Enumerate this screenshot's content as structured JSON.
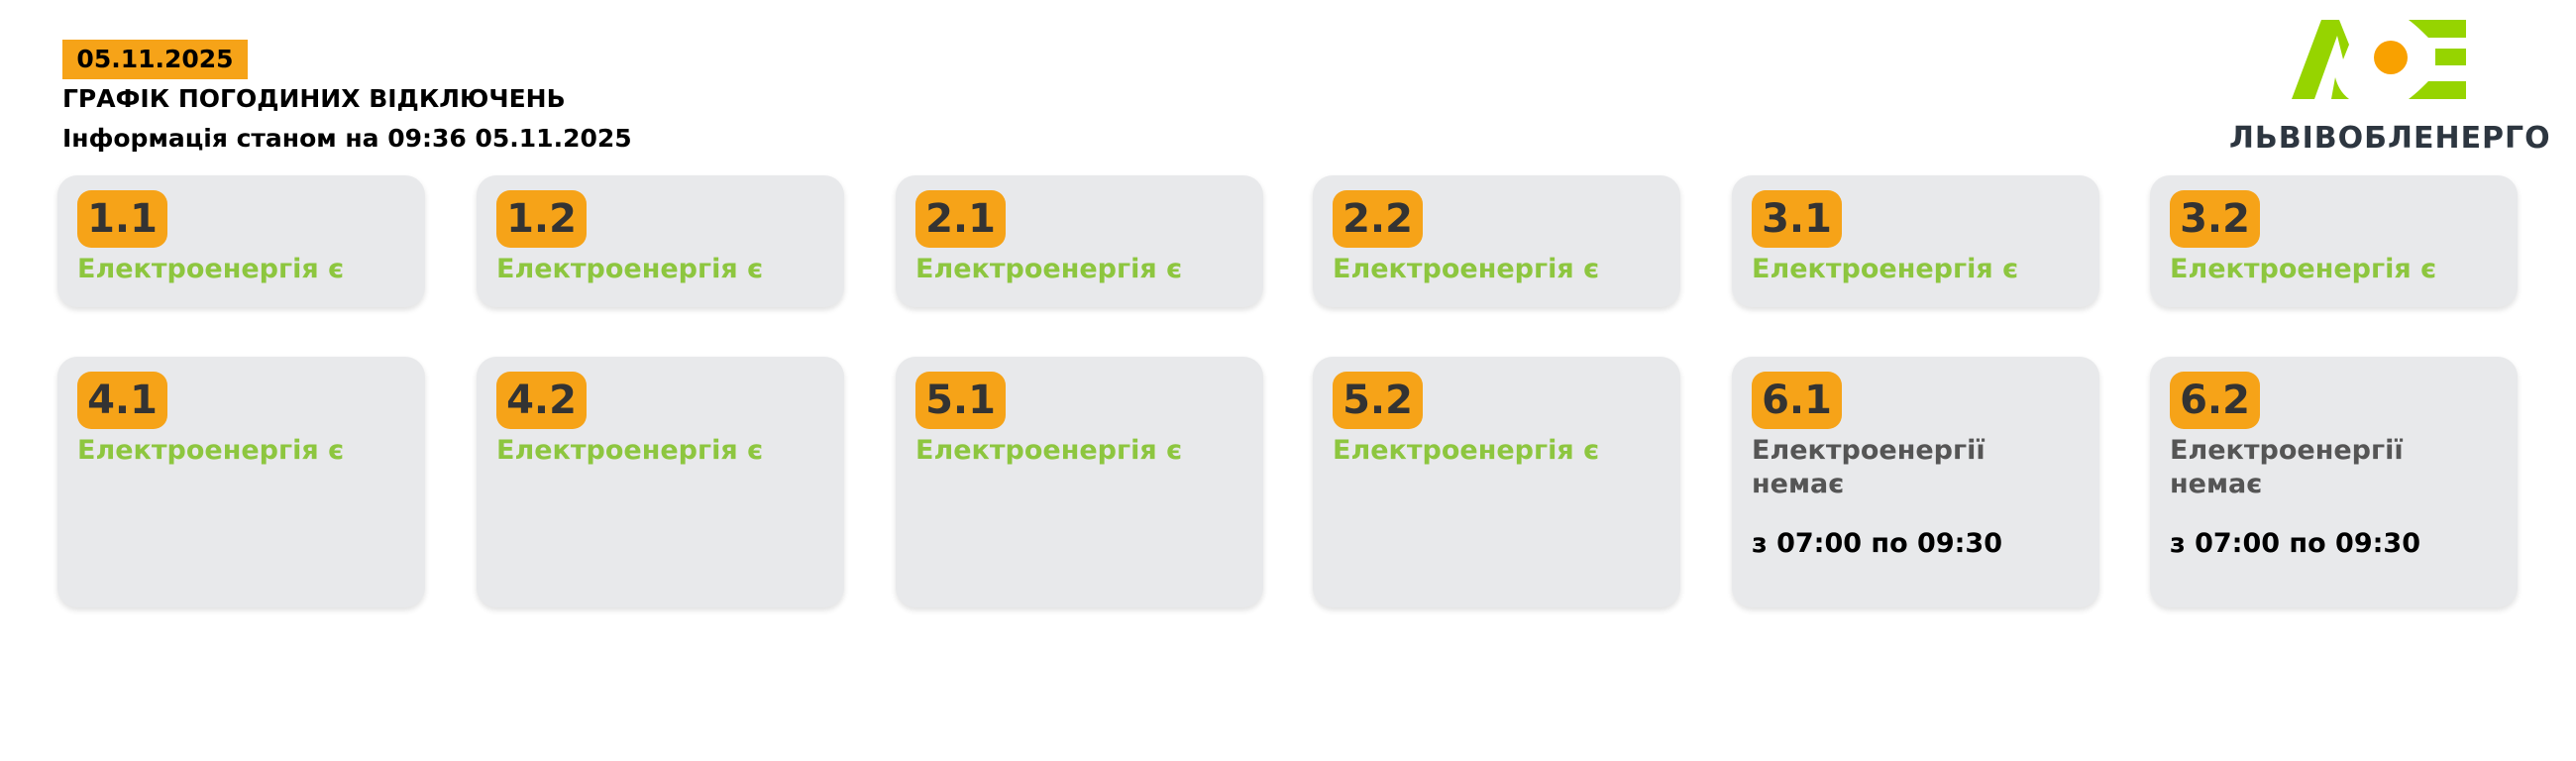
{
  "header": {
    "date": "05.11.2025",
    "title": "ГРАФІК ПОГОДИНИХ ВІДКЛЮЧЕНЬ",
    "info": "Інформація станом на 09:36 05.11.2025"
  },
  "brand": {
    "logo_text": "ЛОЕ",
    "name": "ЛЬВІВОБЛЕНЕРГО",
    "colors": {
      "green": "#96d400",
      "orange": "#f9a100"
    }
  },
  "colors": {
    "accent": "#f6a318",
    "power_on": "#8dc63f",
    "power_off": "#555555",
    "card_bg": "#e8e9eb"
  },
  "groups": [
    {
      "id": "1.1",
      "status": "Електроенергія є"
    },
    {
      "id": "1.2",
      "status": "Електроенергія є"
    },
    {
      "id": "2.1",
      "status": "Електроенергія є"
    },
    {
      "id": "2.2",
      "status": "Електроенергія є"
    },
    {
      "id": "3.1",
      "status": "Електроенергія є"
    },
    {
      "id": "3.2",
      "status": "Електроенергія є"
    },
    {
      "id": "4.1",
      "status": "Електроенергія є"
    },
    {
      "id": "4.2",
      "status": "Електроенергія є"
    },
    {
      "id": "5.1",
      "status": "Електроенергія є"
    },
    {
      "id": "5.2",
      "status": "Електроенергія є"
    },
    {
      "id": "6.1",
      "status": "Електроенергії немає",
      "time": "з 07:00 по 09:30"
    },
    {
      "id": "6.2",
      "status": "Електроенергії немає",
      "time": "з 07:00 по 09:30"
    }
  ]
}
